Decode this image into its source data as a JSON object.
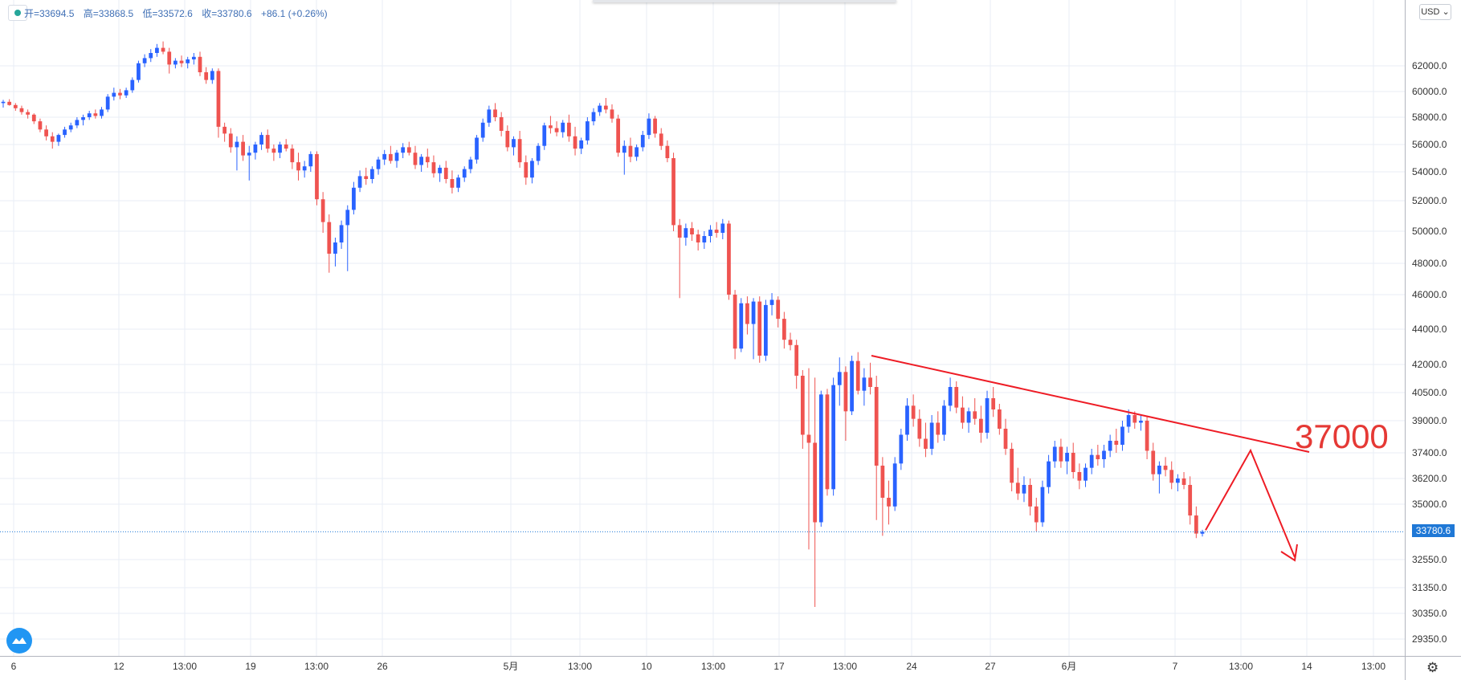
{
  "ohlc_bar": {
    "open": "开=33694.5",
    "high": "高=33868.5",
    "low": "低=33572.6",
    "close": "收=33780.6",
    "change": "+86.1 (+0.26%)"
  },
  "currency": "USD",
  "last_price_label": "33780.6",
  "annotation_text": "37000",
  "colors": {
    "up": "#2962ff",
    "down": "#ef5350",
    "grid": "#e9eef5",
    "trend": "#ee1c25",
    "price_line": "#1f78d6"
  },
  "icons": [
    "tv-logo-icon",
    "gear-icon",
    "status-dot-icon"
  ],
  "chart_data": {
    "type": "candlestick",
    "yaxis_ticks": [
      "62000.0",
      "60000.0",
      "58000.0",
      "56000.0",
      "54000.0",
      "52000.0",
      "50000.0",
      "48000.0",
      "46000.0",
      "44000.0",
      "42000.0",
      "40500.0",
      "39000.0",
      "37400.0",
      "36200.0",
      "35000.0",
      "32550.0",
      "31350.0",
      "30350.0",
      "29350.0"
    ],
    "xaxis_ticks": [
      "6",
      "12",
      "13:00",
      "19",
      "13:00",
      "26",
      "5月",
      "13:00",
      "10",
      "13:00",
      "17",
      "13:00",
      "24",
      "27",
      "6月",
      "7",
      "13:00",
      "14",
      "13:00"
    ],
    "last_price": 33780.6,
    "candles": [
      [
        59100,
        59350,
        58750,
        59200
      ],
      [
        59200,
        59400,
        58900,
        58950
      ],
      [
        58950,
        59100,
        58500,
        58700
      ],
      [
        58700,
        58900,
        58200,
        58400
      ],
      [
        58400,
        58600,
        57900,
        58200
      ],
      [
        58200,
        58300,
        57500,
        57700
      ],
      [
        57700,
        57900,
        56900,
        57100
      ],
      [
        57100,
        57400,
        56300,
        56600
      ],
      [
        56600,
        56900,
        55700,
        56200
      ],
      [
        56200,
        56800,
        55900,
        56700
      ],
      [
        56700,
        57300,
        56500,
        57100
      ],
      [
        57100,
        57600,
        56900,
        57400
      ],
      [
        57400,
        58000,
        57200,
        57800
      ],
      [
        57800,
        58200,
        57400,
        58000
      ],
      [
        58000,
        58500,
        57800,
        58300
      ],
      [
        58300,
        58600,
        57900,
        58100
      ],
      [
        58100,
        58800,
        57900,
        58600
      ],
      [
        58600,
        59800,
        58400,
        59600
      ],
      [
        59600,
        60300,
        59300,
        59900
      ],
      [
        59900,
        60200,
        59400,
        59700
      ],
      [
        59700,
        60300,
        59500,
        60100
      ],
      [
        60100,
        61100,
        59900,
        60900
      ],
      [
        60900,
        62400,
        60700,
        62200
      ],
      [
        62200,
        62900,
        61900,
        62600
      ],
      [
        62600,
        63300,
        62300,
        63000
      ],
      [
        63000,
        63700,
        62700,
        63400
      ],
      [
        63400,
        63900,
        62900,
        63100
      ],
      [
        63100,
        63400,
        61400,
        62100
      ],
      [
        62100,
        62600,
        61800,
        62400
      ],
      [
        62400,
        62800,
        61900,
        62200
      ],
      [
        62200,
        62700,
        61800,
        62500
      ],
      [
        62500,
        63000,
        62100,
        62700
      ],
      [
        62700,
        63100,
        61200,
        61500
      ],
      [
        61500,
        61900,
        60600,
        60900
      ],
      [
        60900,
        61800,
        60600,
        61600
      ],
      [
        61600,
        61800,
        56500,
        57300
      ],
      [
        57300,
        57600,
        56200,
        56800
      ],
      [
        56800,
        57200,
        55400,
        55800
      ],
      [
        55800,
        56600,
        54100,
        56200
      ],
      [
        56200,
        56700,
        54800,
        55200
      ],
      [
        55200,
        55900,
        53400,
        55400
      ],
      [
        55400,
        56200,
        54900,
        56000
      ],
      [
        56000,
        56900,
        55600,
        56700
      ],
      [
        56700,
        57100,
        55400,
        55700
      ],
      [
        55700,
        56000,
        54800,
        55400
      ],
      [
        55400,
        56200,
        55000,
        56000
      ],
      [
        56000,
        56400,
        55500,
        55700
      ],
      [
        55700,
        56000,
        54200,
        54700
      ],
      [
        54700,
        55400,
        53400,
        54100
      ],
      [
        54100,
        54800,
        53600,
        54400
      ],
      [
        54400,
        55500,
        54000,
        55300
      ],
      [
        55300,
        55500,
        51700,
        52100
      ],
      [
        52100,
        52600,
        49900,
        50600
      ],
      [
        50600,
        51100,
        47400,
        48600
      ],
      [
        48600,
        49600,
        47800,
        49300
      ],
      [
        49300,
        50700,
        48900,
        50400
      ],
      [
        50400,
        51700,
        47500,
        51400
      ],
      [
        51400,
        53300,
        51100,
        52900
      ],
      [
        52900,
        54100,
        52600,
        53700
      ],
      [
        53700,
        54300,
        53100,
        53500
      ],
      [
        53500,
        54400,
        53200,
        54200
      ],
      [
        54200,
        55100,
        53800,
        54900
      ],
      [
        54900,
        55600,
        54500,
        55300
      ],
      [
        55300,
        55900,
        54600,
        54800
      ],
      [
        54800,
        55600,
        54300,
        55400
      ],
      [
        55400,
        56100,
        55000,
        55800
      ],
      [
        55800,
        56200,
        55200,
        55400
      ],
      [
        55400,
        55900,
        54200,
        54500
      ],
      [
        54500,
        55300,
        54000,
        55100
      ],
      [
        55100,
        55700,
        54300,
        54700
      ],
      [
        54700,
        55200,
        53600,
        53900
      ],
      [
        53900,
        54500,
        53300,
        54300
      ],
      [
        54300,
        54800,
        53200,
        53500
      ],
      [
        53500,
        54100,
        52500,
        52900
      ],
      [
        52900,
        53800,
        52600,
        53600
      ],
      [
        53600,
        54400,
        53300,
        54200
      ],
      [
        54200,
        55100,
        53900,
        54900
      ],
      [
        54900,
        56700,
        54600,
        56500
      ],
      [
        56500,
        57900,
        56200,
        57600
      ],
      [
        57600,
        58900,
        57300,
        58600
      ],
      [
        58600,
        59100,
        57700,
        58000
      ],
      [
        58000,
        58400,
        56600,
        57000
      ],
      [
        57000,
        57400,
        55500,
        55800
      ],
      [
        55800,
        56600,
        55200,
        56400
      ],
      [
        56400,
        57000,
        54300,
        54700
      ],
      [
        54700,
        55200,
        53100,
        53600
      ],
      [
        53600,
        55000,
        53200,
        54800
      ],
      [
        54800,
        56100,
        54500,
        55900
      ],
      [
        55900,
        57600,
        55600,
        57400
      ],
      [
        57400,
        58100,
        56800,
        57200
      ],
      [
        57200,
        57700,
        56600,
        56900
      ],
      [
        56900,
        57800,
        56500,
        57600
      ],
      [
        57600,
        58200,
        56200,
        56600
      ],
      [
        56600,
        57300,
        55200,
        55700
      ],
      [
        55700,
        56500,
        55300,
        56300
      ],
      [
        56300,
        58000,
        56000,
        57700
      ],
      [
        57700,
        58700,
        57400,
        58400
      ],
      [
        58400,
        59100,
        58100,
        58900
      ],
      [
        58900,
        59500,
        58300,
        58600
      ],
      [
        58600,
        59000,
        57600,
        57900
      ],
      [
        57900,
        58200,
        55100,
        55400
      ],
      [
        55400,
        56300,
        53800,
        55900
      ],
      [
        55900,
        56500,
        54700,
        55100
      ],
      [
        55100,
        56000,
        54800,
        55800
      ],
      [
        55800,
        57000,
        55500,
        56700
      ],
      [
        56700,
        58300,
        56400,
        57900
      ],
      [
        57900,
        58100,
        56500,
        56800
      ],
      [
        56800,
        57200,
        55600,
        55900
      ],
      [
        55900,
        56300,
        54700,
        55000
      ],
      [
        55000,
        55400,
        50000,
        50400
      ],
      [
        50400,
        50800,
        45800,
        49600
      ],
      [
        49600,
        50500,
        49100,
        50200
      ],
      [
        50200,
        50600,
        49400,
        49800
      ],
      [
        49800,
        50100,
        48800,
        49300
      ],
      [
        49300,
        50000,
        48900,
        49700
      ],
      [
        49700,
        50400,
        49300,
        50100
      ],
      [
        50100,
        50600,
        49600,
        49900
      ],
      [
        49900,
        50800,
        49500,
        50500
      ],
      [
        50500,
        50700,
        45700,
        46000
      ],
      [
        46000,
        46300,
        42300,
        42900
      ],
      [
        42900,
        45800,
        42700,
        45500
      ],
      [
        45500,
        45900,
        43700,
        44300
      ],
      [
        44300,
        45800,
        42300,
        45600
      ],
      [
        45600,
        45900,
        42100,
        42500
      ],
      [
        42500,
        45700,
        42200,
        45400
      ],
      [
        45400,
        46100,
        44800,
        45700
      ],
      [
        45700,
        45900,
        44100,
        44600
      ],
      [
        44600,
        45000,
        42900,
        43400
      ],
      [
        43400,
        43800,
        42800,
        43100
      ],
      [
        43100,
        43400,
        40700,
        41400
      ],
      [
        41400,
        41700,
        37600,
        38300
      ],
      [
        38300,
        41800,
        33000,
        37900
      ],
      [
        37900,
        41300,
        30600,
        34200
      ],
      [
        34200,
        40600,
        34000,
        40400
      ],
      [
        40400,
        40700,
        35400,
        35700
      ],
      [
        35700,
        41300,
        35400,
        40900
      ],
      [
        40900,
        42400,
        39800,
        41600
      ],
      [
        41600,
        41900,
        38000,
        39500
      ],
      [
        39500,
        42500,
        39300,
        42200
      ],
      [
        42200,
        42700,
        40400,
        40600
      ],
      [
        40600,
        41800,
        39800,
        41300
      ],
      [
        41300,
        42100,
        40400,
        40800
      ],
      [
        40800,
        41400,
        34300,
        36800
      ],
      [
        36800,
        37200,
        33600,
        35300
      ],
      [
        35300,
        36100,
        34100,
        34900
      ],
      [
        34900,
        37200,
        34700,
        36900
      ],
      [
        36900,
        38600,
        36600,
        38300
      ],
      [
        38300,
        40200,
        38000,
        39800
      ],
      [
        39800,
        40400,
        38700,
        39100
      ],
      [
        39100,
        39600,
        37700,
        38100
      ],
      [
        38100,
        38900,
        37200,
        37600
      ],
      [
        37600,
        39300,
        37300,
        38900
      ],
      [
        38900,
        39500,
        37900,
        38300
      ],
      [
        38300,
        40100,
        38000,
        39800
      ],
      [
        39800,
        41300,
        39500,
        40800
      ],
      [
        40800,
        41100,
        39400,
        39700
      ],
      [
        39700,
        40300,
        38600,
        38900
      ],
      [
        38900,
        39700,
        38400,
        39500
      ],
      [
        39500,
        40200,
        38800,
        39100
      ],
      [
        39100,
        39800,
        37900,
        38400
      ],
      [
        38400,
        40600,
        38100,
        40200
      ],
      [
        40200,
        40800,
        39200,
        39600
      ],
      [
        39600,
        39900,
        38300,
        38600
      ],
      [
        38600,
        39100,
        37300,
        37600
      ],
      [
        37600,
        37900,
        35600,
        36000
      ],
      [
        36000,
        36700,
        35200,
        35500
      ],
      [
        35500,
        36300,
        35100,
        35900
      ],
      [
        35900,
        36200,
        34500,
        34900
      ],
      [
        34900,
        35300,
        33800,
        34200
      ],
      [
        34200,
        36100,
        34000,
        35800
      ],
      [
        35800,
        37300,
        35500,
        37000
      ],
      [
        37000,
        38000,
        36700,
        37700
      ],
      [
        37700,
        38100,
        36700,
        37000
      ],
      [
        37000,
        37700,
        36400,
        37400
      ],
      [
        37400,
        37900,
        36200,
        36500
      ],
      [
        36500,
        36900,
        35700,
        36100
      ],
      [
        36100,
        36900,
        35800,
        36700
      ],
      [
        36700,
        37600,
        36400,
        37300
      ],
      [
        37300,
        37800,
        36800,
        37100
      ],
      [
        37100,
        37800,
        36700,
        37500
      ],
      [
        37500,
        38300,
        37200,
        38000
      ],
      [
        38000,
        38600,
        37400,
        37800
      ],
      [
        37800,
        39000,
        37500,
        38700
      ],
      [
        38700,
        39600,
        38400,
        39300
      ],
      [
        39300,
        39500,
        38600,
        38900
      ],
      [
        38900,
        39300,
        38500,
        39000
      ],
      [
        39000,
        39200,
        37100,
        37500
      ],
      [
        37500,
        37900,
        36100,
        36400
      ],
      [
        36400,
        37000,
        35500,
        36800
      ],
      [
        36800,
        37200,
        36300,
        36600
      ],
      [
        36600,
        37000,
        35700,
        36000
      ],
      [
        36000,
        36400,
        35600,
        36200
      ],
      [
        36200,
        36500,
        35700,
        35900
      ],
      [
        35900,
        36300,
        34100,
        34500
      ],
      [
        34500,
        34900,
        33500,
        33700
      ],
      [
        33694.5,
        33868.5,
        33572.6,
        33780.6
      ]
    ]
  }
}
